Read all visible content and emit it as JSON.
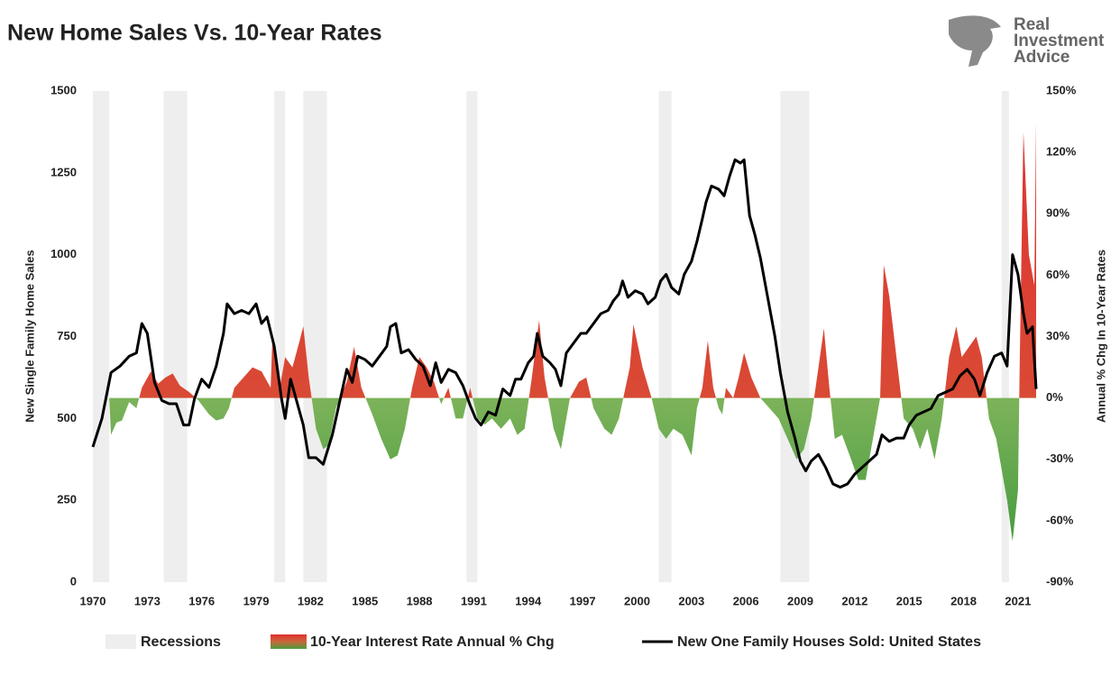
{
  "chart_data": {
    "type": "line",
    "title": "New Home Sales Vs. 10-Year Rates",
    "brand": [
      "Real",
      "Investment",
      "Advice"
    ],
    "y_label": "New Single Family Home Sales",
    "y2_label": "Annual % Chg In 10-Year Rates",
    "xlim": [
      1970,
      2022
    ],
    "xticks": [
      1970,
      1973,
      1976,
      1979,
      1982,
      1985,
      1988,
      1991,
      1994,
      1997,
      2000,
      2003,
      2006,
      2009,
      2012,
      2015,
      2018,
      2021
    ],
    "ylim": [
      0,
      1500
    ],
    "yticks": [
      0,
      250,
      500,
      750,
      1000,
      1250,
      1500
    ],
    "y2lim": [
      -90,
      150
    ],
    "y2ticks": [
      {
        "value": -90,
        "label": "-90%"
      },
      {
        "value": -60,
        "label": "-60%"
      },
      {
        "value": -30,
        "label": "-30%"
      },
      {
        "value": 0,
        "label": "0%"
      },
      {
        "value": 30,
        "label": "30%"
      },
      {
        "value": 60,
        "label": "60%"
      },
      {
        "value": 90,
        "label": "90%"
      },
      {
        "value": 120,
        "label": "120%"
      },
      {
        "value": 150,
        "label": "150%"
      }
    ],
    "recessions": {
      "name": "Recessions",
      "color": "#eeeeee",
      "ranges": [
        [
          1969.9,
          1970.9
        ],
        [
          1973.9,
          1975.2
        ],
        [
          1980.0,
          1980.6
        ],
        [
          1981.6,
          1982.9
        ],
        [
          1990.6,
          1991.2
        ],
        [
          2001.2,
          2001.9
        ],
        [
          2007.9,
          2009.5
        ],
        [
          2020.1,
          2020.5
        ]
      ]
    },
    "series": [
      {
        "name": "10-Year Interest Rate Annual % Chg",
        "type": "area",
        "axis": "y2",
        "color": "#e03030",
        "negative_color": "#3f9e3f",
        "x": [
          1970.9,
          1971,
          1971.3,
          1971.6,
          1972,
          1972.4,
          1972.7,
          1973.2,
          1973.6,
          1974,
          1974.4,
          1974.8,
          1975.3,
          1975.8,
          1976.4,
          1976.8,
          1977.2,
          1977.5,
          1977.8,
          1978.3,
          1978.8,
          1979.3,
          1979.8,
          1979.9,
          1980.3,
          1980.6,
          1981,
          1981.4,
          1981.6,
          1981.9,
          1982.3,
          1982.7,
          1983,
          1983.4,
          1984,
          1984.4,
          1984.8,
          1985.4,
          1985.9,
          1986.4,
          1986.8,
          1987.2,
          1987.6,
          1988,
          1988.4,
          1988.8,
          1989.2,
          1989.6,
          1990,
          1990.4,
          1990.8,
          1991.2,
          1991.6,
          1992,
          1992.5,
          1993,
          1993.4,
          1993.8,
          1994.2,
          1994.6,
          1994.9,
          1995.4,
          1995.8,
          1996.3,
          1996.8,
          1997.2,
          1997.6,
          1998.2,
          1998.6,
          1999,
          1999.6,
          1999.8,
          2000.3,
          2000.8,
          2001.2,
          2001.6,
          2002,
          2002.5,
          2003,
          2003.3,
          2003.6,
          2003.9,
          2004.2,
          2004.5,
          2004.7,
          2004.9,
          2005.3,
          2005.6,
          2005.9,
          2006.3,
          2006.8,
          2007.3,
          2007.8,
          2008.3,
          2008.8,
          2009.2,
          2009.6,
          2010,
          2010.3,
          2010.6,
          2010.9,
          2011.3,
          2011.8,
          2012.2,
          2012.6,
          2013,
          2013.4,
          2013.6,
          2013.9,
          2014.3,
          2014.7,
          2015.2,
          2015.6,
          2016,
          2016.4,
          2016.8,
          2017.2,
          2017.6,
          2017.9,
          2018.3,
          2018.7,
          2019,
          2019.4,
          2019.8,
          2020.1,
          2020.4,
          2020.7,
          2021,
          2021.1,
          2021.3,
          2021.6,
          2021.9,
          2022
        ],
        "values": [
          0,
          -18,
          -12,
          -11,
          -2,
          -5,
          5,
          13,
          7,
          10,
          12,
          6,
          3,
          -1,
          -8,
          -11,
          -10,
          -5,
          5,
          10,
          15,
          13,
          5,
          30,
          5,
          20,
          15,
          28,
          35,
          10,
          -15,
          -25,
          -23,
          -5,
          8,
          25,
          5,
          -8,
          -20,
          -30,
          -28,
          -15,
          5,
          20,
          15,
          8,
          -3,
          5,
          -10,
          -10,
          5,
          -10,
          -13,
          -10,
          -15,
          -10,
          -18,
          -15,
          10,
          38,
          10,
          -15,
          -25,
          0,
          8,
          10,
          -5,
          -15,
          -18,
          -10,
          15,
          36,
          15,
          0,
          -15,
          -20,
          -15,
          -18,
          -28,
          -5,
          5,
          28,
          5,
          -5,
          -8,
          5,
          0,
          10,
          22,
          10,
          0,
          -5,
          -10,
          -20,
          -30,
          -25,
          -10,
          15,
          34,
          5,
          -20,
          -18,
          -30,
          -40,
          -40,
          -20,
          0,
          65,
          50,
          20,
          -10,
          -15,
          -25,
          -15,
          -30,
          -10,
          20,
          35,
          20,
          25,
          30,
          20,
          -10,
          -20,
          -35,
          -50,
          -70,
          -45,
          20,
          130,
          70,
          55,
          135
        ]
      },
      {
        "name": "New One Family Houses Sold: United States",
        "type": "line",
        "axis": "y",
        "color": "#000000",
        "x": [
          1970,
          1970.5,
          1971,
          1971.5,
          1972,
          1972.4,
          1972.7,
          1973,
          1973.4,
          1973.8,
          1974.2,
          1974.6,
          1975,
          1975.3,
          1975.6,
          1976,
          1976.4,
          1976.8,
          1977.2,
          1977.4,
          1977.8,
          1978.2,
          1978.6,
          1979,
          1979.3,
          1979.6,
          1980,
          1980.4,
          1980.6,
          1980.9,
          1981.3,
          1981.6,
          1981.9,
          1982.3,
          1982.7,
          1983.2,
          1983.6,
          1984,
          1984.3,
          1984.6,
          1985,
          1985.4,
          1985.8,
          1986.2,
          1986.4,
          1986.7,
          1987,
          1987.4,
          1987.8,
          1988.2,
          1988.6,
          1988.9,
          1989.2,
          1989.6,
          1990,
          1990.4,
          1990.8,
          1991.1,
          1991.4,
          1991.8,
          1992.2,
          1992.6,
          1993,
          1993.3,
          1993.6,
          1994,
          1994.3,
          1994.5,
          1994.8,
          1995.2,
          1995.5,
          1995.8,
          1996.1,
          1996.5,
          1996.9,
          1997.2,
          1997.6,
          1998,
          1998.4,
          1998.7,
          1999,
          1999.2,
          1999.5,
          1999.9,
          2000.3,
          2000.6,
          2001,
          2001.3,
          2001.6,
          2001.9,
          2002.3,
          2002.6,
          2003,
          2003.3,
          2003.6,
          2003.8,
          2004.1,
          2004.5,
          2004.8,
          2005.1,
          2005.4,
          2005.7,
          2005.9,
          2006.2,
          2006.5,
          2006.8,
          2007.2,
          2007.6,
          2007.9,
          2008.3,
          2008.7,
          2009,
          2009.3,
          2009.6,
          2010,
          2010.4,
          2010.8,
          2011.2,
          2011.6,
          2012,
          2012.4,
          2012.8,
          2013.2,
          2013.5,
          2013.9,
          2014.3,
          2014.7,
          2015,
          2015.4,
          2015.8,
          2016.2,
          2016.6,
          2017,
          2017.4,
          2017.8,
          2018.2,
          2018.6,
          2018.9,
          2019.3,
          2019.7,
          2020.1,
          2020.4,
          2020.7,
          2021,
          2021.3,
          2021.5,
          2021.8,
          2022
        ],
        "values": [
          413,
          500,
          640,
          660,
          690,
          700,
          790,
          760,
          610,
          555,
          545,
          545,
          480,
          480,
          560,
          620,
          595,
          660,
          760,
          850,
          820,
          830,
          820,
          850,
          790,
          810,
          720,
          560,
          500,
          620,
          540,
          480,
          380,
          380,
          360,
          450,
          550,
          650,
          610,
          690,
          680,
          660,
          690,
          720,
          780,
          790,
          700,
          710,
          680,
          660,
          600,
          670,
          610,
          650,
          640,
          600,
          540,
          500,
          480,
          520,
          510,
          590,
          570,
          620,
          620,
          670,
          690,
          760,
          690,
          670,
          650,
          600,
          700,
          730,
          760,
          760,
          790,
          820,
          830,
          860,
          880,
          920,
          870,
          890,
          880,
          850,
          870,
          920,
          940,
          900,
          880,
          940,
          980,
          1040,
          1110,
          1160,
          1210,
          1200,
          1180,
          1240,
          1290,
          1280,
          1290,
          1120,
          1060,
          990,
          870,
          750,
          640,
          520,
          440,
          370,
          340,
          370,
          390,
          350,
          300,
          290,
          300,
          330,
          350,
          370,
          390,
          450,
          430,
          440,
          440,
          480,
          510,
          520,
          530,
          570,
          580,
          590,
          630,
          650,
          620,
          570,
          640,
          690,
          700,
          660,
          1000,
          940,
          820,
          760,
          780,
          590
        ]
      }
    ]
  }
}
